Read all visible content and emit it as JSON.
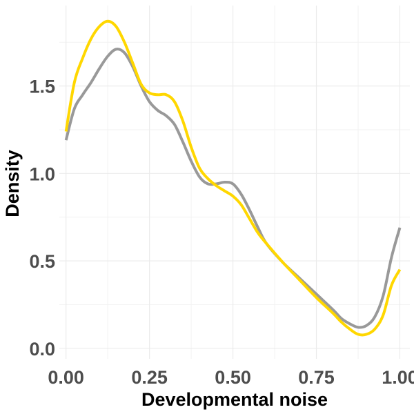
{
  "chart_data": {
    "type": "line",
    "title": "",
    "xlabel": "Developmental noise",
    "ylabel": "Density",
    "xlim": [
      -0.02,
      1.03
    ],
    "ylim": [
      -0.06,
      1.96
    ],
    "grid": true,
    "x_ticks": [
      {
        "value": 0.0,
        "label": "0.00"
      },
      {
        "value": 0.25,
        "label": "0.25"
      },
      {
        "value": 0.5,
        "label": "0.50"
      },
      {
        "value": 0.75,
        "label": "0.75"
      },
      {
        "value": 1.0,
        "label": "1.00"
      }
    ],
    "y_ticks": [
      {
        "value": 0.0,
        "label": "0.0"
      },
      {
        "value": 0.5,
        "label": "0.5"
      },
      {
        "value": 1.0,
        "label": "1.0"
      },
      {
        "value": 1.5,
        "label": "1.5"
      }
    ],
    "series": [
      {
        "color": "#999999",
        "x": [
          0.0,
          0.025,
          0.05,
          0.075,
          0.1,
          0.125,
          0.15,
          0.175,
          0.2,
          0.225,
          0.25,
          0.275,
          0.3,
          0.325,
          0.35,
          0.375,
          0.4,
          0.425,
          0.45,
          0.475,
          0.5,
          0.525,
          0.55,
          0.575,
          0.6,
          0.65,
          0.7,
          0.75,
          0.8,
          0.825,
          0.85,
          0.875,
          0.9,
          0.925,
          0.95,
          0.975,
          1.0
        ],
        "values": [
          1.19,
          1.37,
          1.45,
          1.52,
          1.6,
          1.67,
          1.71,
          1.69,
          1.61,
          1.5,
          1.41,
          1.36,
          1.33,
          1.28,
          1.18,
          1.07,
          0.98,
          0.94,
          0.94,
          0.95,
          0.94,
          0.88,
          0.79,
          0.69,
          0.6,
          0.49,
          0.4,
          0.31,
          0.22,
          0.17,
          0.14,
          0.12,
          0.13,
          0.18,
          0.3,
          0.52,
          0.69
        ]
      },
      {
        "color": "#FFD700",
        "x": [
          0.0,
          0.025,
          0.05,
          0.075,
          0.1,
          0.125,
          0.15,
          0.175,
          0.2,
          0.225,
          0.25,
          0.275,
          0.3,
          0.325,
          0.35,
          0.375,
          0.4,
          0.425,
          0.45,
          0.475,
          0.5,
          0.525,
          0.55,
          0.575,
          0.6,
          0.65,
          0.7,
          0.75,
          0.8,
          0.825,
          0.85,
          0.875,
          0.9,
          0.925,
          0.95,
          0.975,
          1.0
        ],
        "values": [
          1.24,
          1.52,
          1.66,
          1.77,
          1.84,
          1.87,
          1.84,
          1.75,
          1.63,
          1.51,
          1.46,
          1.45,
          1.45,
          1.41,
          1.3,
          1.15,
          1.03,
          0.97,
          0.93,
          0.9,
          0.87,
          0.82,
          0.74,
          0.66,
          0.6,
          0.49,
          0.39,
          0.29,
          0.2,
          0.15,
          0.11,
          0.08,
          0.08,
          0.11,
          0.19,
          0.36,
          0.45
        ]
      }
    ]
  }
}
